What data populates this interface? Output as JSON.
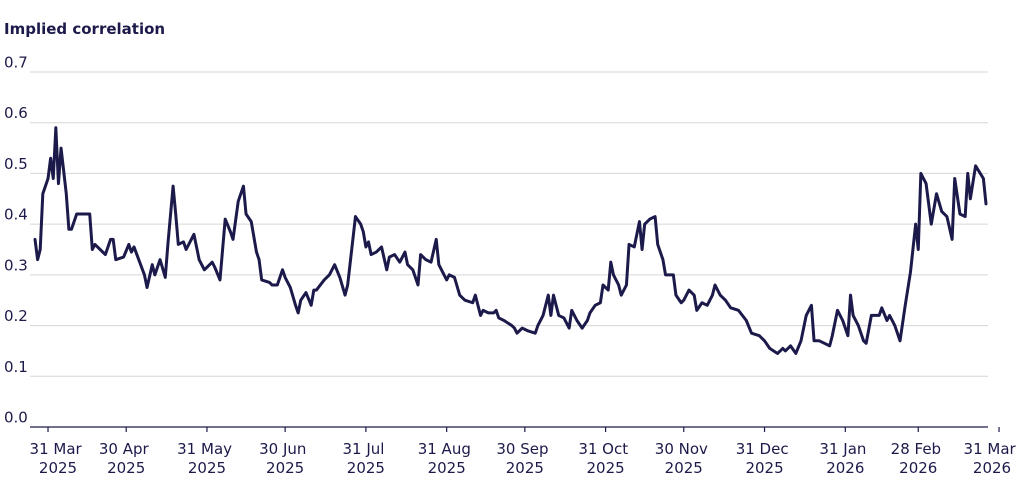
{
  "chart_data": {
    "type": "line",
    "title": "Implied correlation",
    "ylim": [
      0,
      0.7
    ],
    "yticks": [
      {
        "value": 0,
        "label": "0.0"
      },
      0.1,
      0.2,
      0.3,
      0.4,
      0.5,
      0.6,
      0.7
    ],
    "xlim": [
      "2025-03-26",
      "2026-03-26"
    ],
    "xticks": [
      {
        "value": "2025-03-31",
        "label": "31 Mar 2025"
      },
      {
        "value": "2025-04-30",
        "label": "30 Apr 2025"
      },
      {
        "value": "2025-05-31",
        "label": "31 May 2025"
      },
      {
        "value": "2025-06-30",
        "label": "30 Jun 2025"
      },
      {
        "value": "2025-07-31",
        "label": "31 Jul 2025"
      },
      {
        "value": "2025-08-31",
        "label": "31 Aug 2025"
      },
      {
        "value": "2025-09-30",
        "label": "30 Sep 2025"
      },
      {
        "value": "2025-10-31",
        "label": "31 Oct 2025"
      },
      {
        "value": "2025-11-30",
        "label": "30 Nov 2025"
      },
      {
        "value": "2025-12-31",
        "label": "31 Dec 2025"
      },
      {
        "value": "2026-01-31",
        "label": "31 Jan 2026"
      },
      {
        "value": "2026-02-28",
        "label": "28 Feb 2026"
      },
      {
        "value": "2026-03-31",
        "label": "31 Mar 2026"
      }
    ],
    "grid": true,
    "x": [
      "2025-03-26",
      "2025-03-27",
      "2025-03-28",
      "2025-03-29",
      "2025-03-31",
      "2025-04-01",
      "2025-04-02",
      "2025-04-03",
      "2025-04-04",
      "2025-04-05",
      "2025-04-07",
      "2025-04-08",
      "2025-04-09",
      "2025-04-11",
      "2025-04-16",
      "2025-04-17",
      "2025-04-18",
      "2025-04-20",
      "2025-04-22",
      "2025-04-24",
      "2025-04-25",
      "2025-04-26",
      "2025-04-29",
      "2025-05-01",
      "2025-05-02",
      "2025-05-03",
      "2025-05-07",
      "2025-05-08",
      "2025-05-10",
      "2025-05-11",
      "2025-05-13",
      "2025-05-15",
      "2025-05-16",
      "2025-05-18",
      "2025-05-19",
      "2025-05-20",
      "2025-05-22",
      "2025-05-23",
      "2025-05-26",
      "2025-05-28",
      "2025-05-30",
      "2025-06-02",
      "2025-06-03",
      "2025-06-05",
      "2025-06-07",
      "2025-06-09",
      "2025-06-10",
      "2025-06-12",
      "2025-06-14",
      "2025-06-15",
      "2025-06-17",
      "2025-06-19",
      "2025-06-20",
      "2025-06-21",
      "2025-06-24",
      "2025-06-25",
      "2025-06-27",
      "2025-06-29",
      "2025-06-30",
      "2025-07-02",
      "2025-07-04",
      "2025-07-05",
      "2025-07-06",
      "2025-07-08",
      "2025-07-10",
      "2025-07-11",
      "2025-07-12",
      "2025-07-15",
      "2025-07-17",
      "2025-07-19",
      "2025-07-21",
      "2025-07-23",
      "2025-07-24",
      "2025-07-27",
      "2025-07-29",
      "2025-07-30",
      "2025-07-31",
      "2025-08-01",
      "2025-08-02",
      "2025-08-04",
      "2025-08-06",
      "2025-08-08",
      "2025-08-09",
      "2025-08-11",
      "2025-08-13",
      "2025-08-15",
      "2025-08-16",
      "2025-08-18",
      "2025-08-20",
      "2025-08-21",
      "2025-08-23",
      "2025-08-25",
      "2025-08-27",
      "2025-08-28",
      "2025-08-31",
      "2025-09-01",
      "2025-09-03",
      "2025-09-05",
      "2025-09-07",
      "2025-09-10",
      "2025-09-11",
      "2025-09-13",
      "2025-09-14",
      "2025-09-16",
      "2025-09-18",
      "2025-09-19",
      "2025-09-20",
      "2025-09-22",
      "2025-09-25",
      "2025-09-26",
      "2025-09-27",
      "2025-09-29",
      "2025-10-01",
      "2025-10-04",
      "2025-10-05",
      "2025-10-07",
      "2025-10-09",
      "2025-10-10",
      "2025-10-11",
      "2025-10-13",
      "2025-10-15",
      "2025-10-17",
      "2025-10-18",
      "2025-10-20",
      "2025-10-22",
      "2025-10-24",
      "2025-10-25",
      "2025-10-27",
      "2025-10-29",
      "2025-10-30",
      "2025-11-01",
      "2025-11-02",
      "2025-11-03",
      "2025-11-05",
      "2025-11-06",
      "2025-11-08",
      "2025-11-09",
      "2025-11-11",
      "2025-11-13",
      "2025-11-14",
      "2025-11-15",
      "2025-11-17",
      "2025-11-19",
      "2025-11-20",
      "2025-11-22",
      "2025-11-23",
      "2025-11-26",
      "2025-11-27",
      "2025-11-29",
      "2025-11-30",
      "2025-12-02",
      "2025-12-04",
      "2025-12-05",
      "2025-12-07",
      "2025-12-09",
      "2025-12-11",
      "2025-12-12",
      "2025-12-14",
      "2025-12-16",
      "2025-12-18",
      "2025-12-21",
      "2025-12-24",
      "2025-12-26",
      "2025-12-29",
      "2025-12-31",
      "2026-01-02",
      "2026-01-05",
      "2026-01-07",
      "2026-01-08",
      "2026-01-10",
      "2026-01-12",
      "2026-01-14",
      "2026-01-16",
      "2026-01-18",
      "2026-01-19",
      "2026-01-21",
      "2026-01-23",
      "2026-01-25",
      "2026-01-26",
      "2026-01-28",
      "2026-01-30",
      "2026-02-01",
      "2026-02-02",
      "2026-02-03",
      "2026-02-05",
      "2026-02-07",
      "2026-02-08",
      "2026-02-10",
      "2026-02-13",
      "2026-02-14",
      "2026-02-16",
      "2026-02-17",
      "2026-02-19",
      "2026-02-21",
      "2026-02-23",
      "2026-02-25",
      "2026-02-27",
      "2026-02-28",
      "2026-03-01",
      "2026-03-03",
      "2026-03-05",
      "2026-03-07",
      "2026-03-09",
      "2026-03-11",
      "2026-03-13",
      "2026-03-14",
      "2026-03-16",
      "2026-03-18",
      "2026-03-19",
      "2026-03-20",
      "2026-03-22",
      "2026-03-25",
      "2026-03-26"
    ],
    "series": [
      {
        "name": "Implied correlation",
        "color": "#1c1a4a",
        "values": [
          0.37,
          0.33,
          0.35,
          0.46,
          0.49,
          0.53,
          0.49,
          0.59,
          0.48,
          0.55,
          0.46,
          0.39,
          0.39,
          0.42,
          0.42,
          0.35,
          0.36,
          0.35,
          0.34,
          0.37,
          0.37,
          0.33,
          0.335,
          0.36,
          0.345,
          0.355,
          0.3,
          0.275,
          0.32,
          0.3,
          0.33,
          0.295,
          0.36,
          0.475,
          0.42,
          0.36,
          0.365,
          0.35,
          0.38,
          0.33,
          0.31,
          0.325,
          0.315,
          0.29,
          0.41,
          0.385,
          0.37,
          0.445,
          0.475,
          0.42,
          0.405,
          0.345,
          0.33,
          0.29,
          0.285,
          0.28,
          0.28,
          0.31,
          0.295,
          0.275,
          0.24,
          0.225,
          0.25,
          0.265,
          0.24,
          0.27,
          0.27,
          0.29,
          0.3,
          0.32,
          0.295,
          0.26,
          0.28,
          0.415,
          0.4,
          0.385,
          0.355,
          0.365,
          0.34,
          0.345,
          0.355,
          0.31,
          0.335,
          0.34,
          0.325,
          0.345,
          0.32,
          0.31,
          0.28,
          0.34,
          0.33,
          0.325,
          0.37,
          0.32,
          0.29,
          0.3,
          0.295,
          0.26,
          0.25,
          0.245,
          0.26,
          0.22,
          0.23,
          0.225,
          0.225,
          0.23,
          0.215,
          0.21,
          0.2,
          0.195,
          0.185,
          0.195,
          0.19,
          0.185,
          0.2,
          0.22,
          0.26,
          0.22,
          0.26,
          0.22,
          0.215,
          0.195,
          0.23,
          0.21,
          0.195,
          0.21,
          0.225,
          0.24,
          0.245,
          0.28,
          0.27,
          0.325,
          0.3,
          0.28,
          0.26,
          0.28,
          0.36,
          0.355,
          0.405,
          0.35,
          0.4,
          0.41,
          0.415,
          0.36,
          0.33,
          0.3,
          0.3,
          0.26,
          0.245,
          0.25,
          0.27,
          0.26,
          0.23,
          0.245,
          0.24,
          0.26,
          0.28,
          0.26,
          0.25,
          0.235,
          0.23,
          0.21,
          0.185,
          0.18,
          0.17,
          0.155,
          0.145,
          0.155,
          0.15,
          0.16,
          0.145,
          0.17,
          0.22,
          0.24,
          0.17,
          0.17,
          0.165,
          0.16,
          0.18,
          0.23,
          0.21,
          0.18,
          0.26,
          0.22,
          0.2,
          0.17,
          0.165,
          0.22,
          0.22,
          0.235,
          0.21,
          0.22,
          0.2,
          0.17,
          0.24,
          0.305,
          0.4,
          0.35,
          0.5,
          0.48,
          0.4,
          0.46,
          0.425,
          0.415,
          0.37,
          0.49,
          0.42,
          0.415,
          0.5,
          0.45,
          0.515,
          0.49,
          0.44
        ]
      }
    ]
  }
}
